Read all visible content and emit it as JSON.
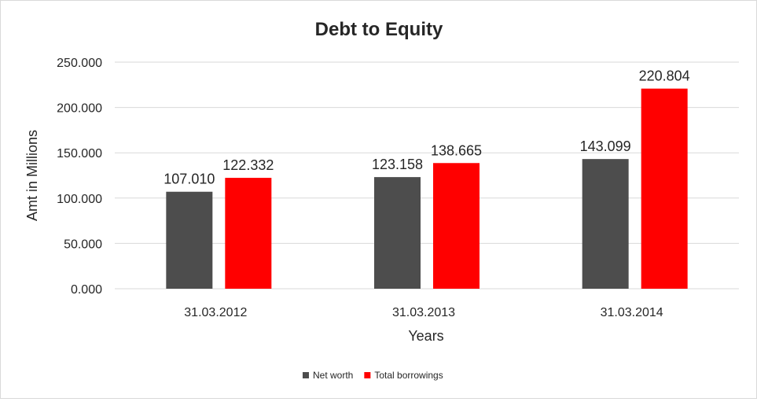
{
  "chart_data": {
    "type": "bar",
    "title": "Debt to Equity",
    "xlabel": "Years",
    "ylabel": "Amt in Millions",
    "categories": [
      "31.03.2012",
      "31.03.2013",
      "31.03.2014"
    ],
    "series": [
      {
        "name": "Net worth",
        "color": "#4d4d4d",
        "values": [
          107.01,
          123.158,
          143.099
        ],
        "labels": [
          "107.010",
          "123.158",
          "143.099"
        ]
      },
      {
        "name": "Total borrowings",
        "color": "#ff0000",
        "values": [
          122.332,
          138.665,
          220.804
        ],
        "labels": [
          "122.332",
          "138.665",
          "220.804"
        ]
      }
    ],
    "ylim": [
      0,
      250
    ],
    "yticks": [
      0,
      50,
      100,
      150,
      200,
      250
    ],
    "ytick_labels": [
      "0.000",
      "50.000",
      "100.000",
      "150.000",
      "200.000",
      "250.000"
    ],
    "grid": true,
    "legend_position": "bottom"
  }
}
